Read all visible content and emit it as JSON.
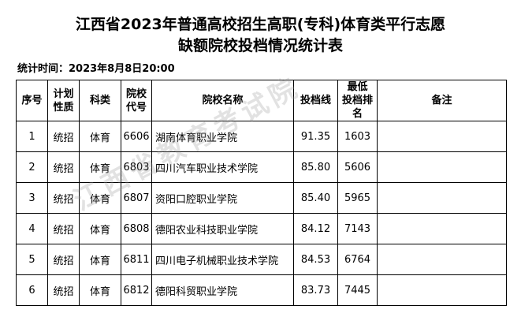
{
  "header": {
    "title_lines": [
      "江西省2023年普通高校招生高职(专科)体育类平行志愿",
      "缺额院校投档情况统计表"
    ],
    "time": "统计时间：2023年8月8日20:00"
  },
  "table": {
    "columns": [
      [
        "序号"
      ],
      [
        "计划",
        "性质"
      ],
      [
        "科类"
      ],
      [
        "院校",
        "代号"
      ],
      [
        "院校名称"
      ],
      [
        "投档线"
      ],
      [
        "最低",
        "投档排名"
      ],
      [
        "备注"
      ]
    ],
    "rows": [
      [
        "1",
        "统招",
        "体育",
        "6606",
        "湖南体育职业学院",
        "91.35",
        "1603"
      ],
      [
        "2",
        "统招",
        "体育",
        "6803",
        "四川汽车职业技术学院",
        "85.80",
        "5606"
      ],
      [
        "3",
        "统招",
        "体育",
        "6807",
        "资阳口腔职业学院",
        "85.40",
        "5965"
      ],
      [
        "4",
        "统招",
        "体育",
        "6808",
        "德阳农业科技职业学院",
        "84.12",
        "7143"
      ],
      [
        "5",
        "统招",
        "体育",
        "6811",
        "四川电子机械职业技术学院",
        "84.53",
        "6764"
      ],
      [
        "6",
        "统招",
        "体育",
        "6812",
        "德阳科贸职业学院",
        "83.73",
        "7445"
      ]
    ]
  },
  "watermark": "江西省教育考试院"
}
